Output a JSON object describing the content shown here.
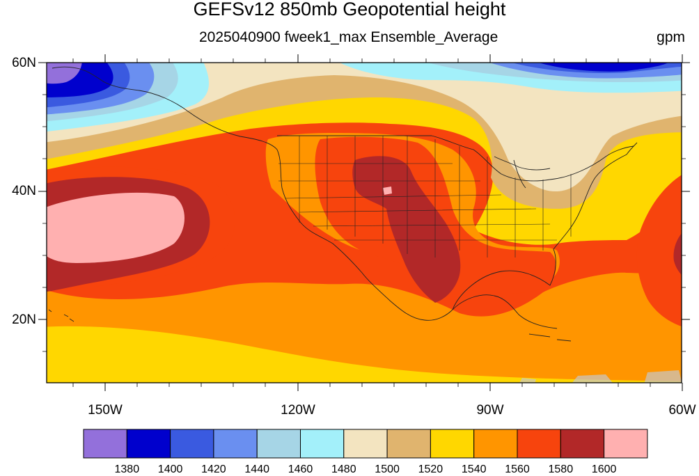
{
  "header": {
    "title": "GEFSv12 850mb Geopotential height",
    "subtitle": "2025040900 fweek1_max Ensemble_Average",
    "units": "gpm"
  },
  "axes": {
    "lat_labels": [
      "60N",
      "40N",
      "20N"
    ],
    "lon_labels": [
      "150W",
      "120W",
      "90W",
      "60W"
    ]
  },
  "colorbar": {
    "labels": [
      "1380",
      "1400",
      "1420",
      "1440",
      "1460",
      "1480",
      "1500",
      "1520",
      "1540",
      "1560",
      "1580",
      "1600"
    ],
    "colors": [
      "#9370db",
      "#0000cd",
      "#3a5ae0",
      "#6a8ff0",
      "#a6d5e6",
      "#a3f0fa",
      "#f3e4c0",
      "#e0b46e",
      "#ffd700",
      "#ff9500",
      "#f7440d",
      "#b22828",
      "#ffb0b0"
    ]
  },
  "map": {
    "extent": "160W-60W, 10N-60N",
    "colors": {
      "purple": "#9370db",
      "navy": "#0000cd",
      "blue": "#3a5ae0",
      "lightblue": "#6a8ff0",
      "paleblue": "#a6d5e6",
      "cyan": "#a3f0fa",
      "cream": "#f3e4c0",
      "tan": "#e0b46e",
      "gold": "#ffd700",
      "orange": "#ff9500",
      "redorange": "#f7440d",
      "darkred": "#b22828",
      "pink": "#ffb0b0"
    }
  }
}
